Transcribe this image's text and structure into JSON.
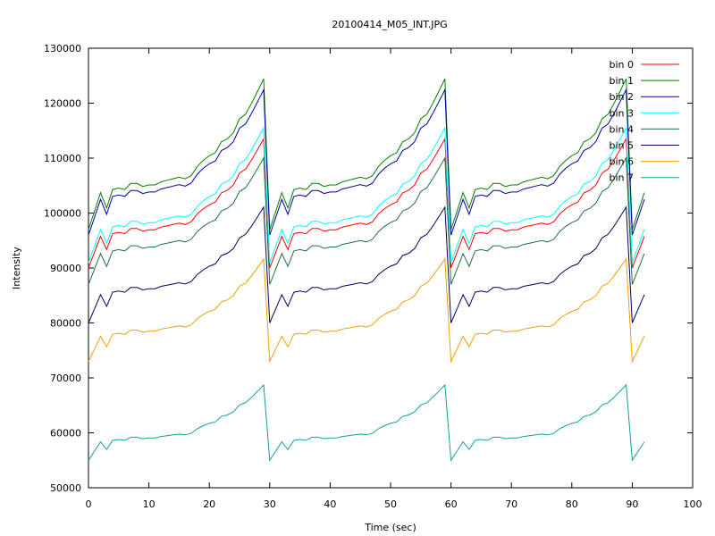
{
  "chart_data": {
    "type": "line",
    "title": "20100414_M05_INT.JPG",
    "xlabel": "Time (sec)",
    "ylabel": "Intensity",
    "xlim": [
      0,
      100
    ],
    "ylim": [
      50000,
      130000
    ],
    "x_ticks": [
      0,
      10,
      20,
      30,
      40,
      50,
      60,
      70,
      80,
      90,
      100
    ],
    "y_ticks": [
      50000,
      60000,
      70000,
      80000,
      90000,
      100000,
      110000,
      120000,
      130000
    ],
    "grid": false,
    "legend_position": "top-right",
    "x": [
      0,
      1,
      2,
      3,
      4,
      5,
      6,
      7,
      8,
      9,
      10,
      11,
      12,
      13,
      14,
      15,
      16,
      17,
      18,
      19,
      20,
      21,
      22,
      23,
      24,
      25,
      26,
      27,
      28,
      29,
      30,
      31,
      32,
      33,
      34,
      35,
      36,
      37,
      38,
      39,
      40,
      41,
      42,
      43,
      44,
      45,
      46,
      47,
      48,
      49,
      50,
      51,
      52,
      53,
      54,
      55,
      56,
      57,
      58,
      59,
      60,
      61,
      62,
      63,
      64,
      65,
      66,
      67,
      68,
      69,
      70,
      71,
      72,
      73,
      74,
      75,
      76,
      77,
      78,
      79,
      80,
      81,
      82,
      83,
      84,
      85,
      86,
      87,
      88,
      89,
      90,
      91,
      92
    ],
    "cycle_index": [
      0,
      1,
      2,
      3,
      4,
      5,
      6,
      7,
      8,
      9,
      10,
      11,
      12,
      13,
      14,
      15,
      16,
      17,
      18,
      19,
      20,
      21,
      22,
      23,
      24,
      25,
      26,
      27,
      28,
      29,
      0,
      1,
      2,
      3,
      4,
      5,
      6,
      7,
      8,
      9,
      10,
      11,
      12,
      13,
      14,
      15,
      16,
      17,
      18,
      19,
      20,
      21,
      22,
      23,
      24,
      25,
      26,
      27,
      28,
      29,
      0,
      1,
      2,
      3,
      4,
      5,
      6,
      7,
      8,
      9,
      10,
      11,
      12,
      13,
      14,
      15,
      16,
      17,
      18,
      19,
      20,
      21,
      22,
      23,
      24,
      25,
      26,
      27,
      28,
      29,
      0,
      1,
      2
    ],
    "cycle_shape": [
      0,
      0.12,
      0.24,
      0.14,
      0.26,
      0.27,
      0.26,
      0.3,
      0.3,
      0.28,
      0.29,
      0.29,
      0.31,
      0.32,
      0.33,
      0.34,
      0.33,
      0.35,
      0.41,
      0.45,
      0.48,
      0.5,
      0.57,
      0.59,
      0.63,
      0.72,
      0.75,
      0.82,
      0.9,
      0.98
    ],
    "series": [
      {
        "name": "bin 0",
        "color": "#ff0000",
        "start": 90000,
        "peak": 114000
      },
      {
        "name": "bin 1",
        "color": "#008000",
        "start": 97000,
        "peak": 125000
      },
      {
        "name": "bin 2",
        "color": "#0000a0",
        "start": 96000,
        "peak": 123000
      },
      {
        "name": "bin 3",
        "color": "#00ffff",
        "start": 91000,
        "peak": 116000
      },
      {
        "name": "bin 4",
        "color": "#207040",
        "start": 87000,
        "peak": 110500
      },
      {
        "name": "bin 5",
        "color": "#000060",
        "start": 80000,
        "peak": 101500
      },
      {
        "name": "bin 6",
        "color": "#f0a000",
        "start": 73000,
        "peak": 92000
      },
      {
        "name": "bin 7",
        "color": "#10a0a0",
        "start": 55000,
        "peak": 69000
      }
    ]
  }
}
